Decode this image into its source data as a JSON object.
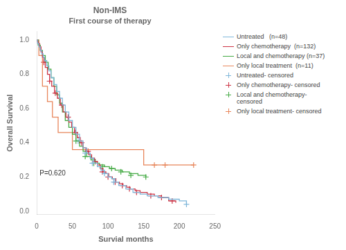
{
  "chart_data": {
    "type": "line",
    "title": "Non-IMS",
    "subtitle": "First course of therapy",
    "x_label": "Survial months",
    "y_label": "Overall Survival",
    "xlim": [
      0,
      250
    ],
    "xticks": [
      0,
      50,
      100,
      150,
      200,
      250
    ],
    "ylim": [
      -0.02,
      1.05
    ],
    "yticks": [
      {
        "value": 0.0,
        "label": "0.0"
      },
      {
        "value": 0.2,
        "label": "0.2"
      },
      {
        "value": 0.4,
        "label": "0.4"
      },
      {
        "value": 0.6,
        "label": "0.6"
      },
      {
        "value": 0.8,
        "label": "0.8"
      },
      {
        "value": 1.0,
        "label": "1.0"
      }
    ],
    "grid": false,
    "legend": "upper right",
    "annotations": [
      {
        "text": "P=0.620",
        "x": 4,
        "y": 0.21
      }
    ],
    "series": [
      {
        "name": "Untreated   (n=48)",
        "type": "line",
        "line_style": "step",
        "color": "#7EB6D9",
        "x": [
          0,
          1,
          3,
          5,
          7,
          9,
          11,
          14,
          17,
          20,
          24,
          28,
          32,
          36,
          40,
          45,
          50,
          55,
          60,
          65,
          70,
          75,
          80,
          85,
          90,
          95,
          100,
          105,
          110,
          115,
          125,
          135,
          145,
          155,
          170,
          185,
          200,
          210
        ],
        "values": [
          1.0,
          0.98,
          0.96,
          0.94,
          0.92,
          0.9,
          0.88,
          0.85,
          0.82,
          0.78,
          0.74,
          0.7,
          0.66,
          0.62,
          0.58,
          0.53,
          0.49,
          0.45,
          0.41,
          0.37,
          0.34,
          0.31,
          0.28,
          0.26,
          0.24,
          0.22,
          0.2,
          0.19,
          0.17,
          0.15,
          0.13,
          0.11,
          0.1,
          0.09,
          0.08,
          0.07,
          0.06,
          0.04
        ]
      },
      {
        "name": "Only chemotherapy  (n=132)",
        "type": "line",
        "line_style": "step",
        "color": "#CC3344",
        "x": [
          0,
          1,
          2,
          4,
          6,
          8,
          10,
          12,
          15,
          18,
          21,
          25,
          29,
          33,
          37,
          41,
          45,
          49,
          53,
          57,
          61,
          65,
          69,
          73,
          77,
          81,
          85,
          89,
          93,
          97,
          101,
          106,
          111,
          116,
          121,
          126,
          131,
          138,
          145,
          155,
          165,
          175,
          185,
          195
        ],
        "values": [
          1.0,
          0.99,
          0.98,
          0.96,
          0.93,
          0.9,
          0.87,
          0.84,
          0.8,
          0.76,
          0.73,
          0.69,
          0.66,
          0.62,
          0.58,
          0.55,
          0.52,
          0.49,
          0.46,
          0.43,
          0.4,
          0.37,
          0.35,
          0.33,
          0.31,
          0.29,
          0.27,
          0.25,
          0.23,
          0.22,
          0.2,
          0.19,
          0.17,
          0.16,
          0.15,
          0.14,
          0.13,
          0.12,
          0.11,
          0.1,
          0.09,
          0.08,
          0.06,
          0.05
        ]
      },
      {
        "name": "Local and chemotherapy (n=37)",
        "type": "line",
        "line_style": "step",
        "color": "#44AA44",
        "x": [
          0,
          2,
          5,
          8,
          12,
          16,
          20,
          24,
          28,
          32,
          36,
          40,
          45,
          50,
          55,
          60,
          65,
          70,
          76,
          82,
          88,
          95,
          102,
          110,
          120,
          130,
          142,
          153
        ],
        "values": [
          1.0,
          0.97,
          0.94,
          0.91,
          0.87,
          0.83,
          0.78,
          0.73,
          0.68,
          0.63,
          0.58,
          0.53,
          0.49,
          0.45,
          0.41,
          0.38,
          0.35,
          0.32,
          0.3,
          0.28,
          0.27,
          0.26,
          0.25,
          0.24,
          0.23,
          0.22,
          0.21,
          0.2
        ]
      },
      {
        "name": "Only local treatment  (n=11)",
        "type": "line",
        "line_style": "step",
        "color": "#E8855A",
        "x": [
          0,
          3,
          8,
          15,
          22,
          30,
          50,
          100,
          150,
          165,
          180,
          220
        ],
        "values": [
          1.0,
          0.91,
          0.73,
          0.64,
          0.55,
          0.46,
          0.36,
          0.36,
          0.27,
          0.27,
          0.27,
          0.27
        ]
      },
      {
        "name": "Untreated- censored",
        "type": "scatter",
        "marker": "plus",
        "color": "#7EB6D9",
        "x": [
          58,
          68,
          78,
          95,
          108,
          210
        ],
        "values": [
          0.41,
          0.34,
          0.28,
          0.22,
          0.17,
          0.04
        ]
      },
      {
        "name": "Only chemotherapy- censored",
        "type": "scatter",
        "marker": "plus",
        "color": "#CC3344",
        "x": [
          10,
          18,
          26,
          35,
          44,
          54,
          63,
          72,
          82,
          92,
          100,
          110,
          120,
          130,
          140,
          160,
          175,
          190
        ],
        "values": [
          0.87,
          0.76,
          0.69,
          0.62,
          0.55,
          0.46,
          0.4,
          0.35,
          0.29,
          0.23,
          0.2,
          0.17,
          0.15,
          0.13,
          0.11,
          0.09,
          0.08,
          0.06
        ]
      },
      {
        "name": "Local and chemotherapy-\ncensored",
        "type": "scatter",
        "marker": "plus",
        "color": "#44AA44",
        "x": [
          55,
          68,
          80,
          92,
          105,
          118,
          132,
          153
        ],
        "values": [
          0.41,
          0.32,
          0.28,
          0.26,
          0.25,
          0.23,
          0.21,
          0.2
        ]
      },
      {
        "name": "Only local treatment- censored",
        "type": "scatter",
        "marker": "plus",
        "color": "#E8855A",
        "x": [
          165,
          180,
          220
        ],
        "values": [
          0.27,
          0.27,
          0.27
        ]
      }
    ]
  }
}
